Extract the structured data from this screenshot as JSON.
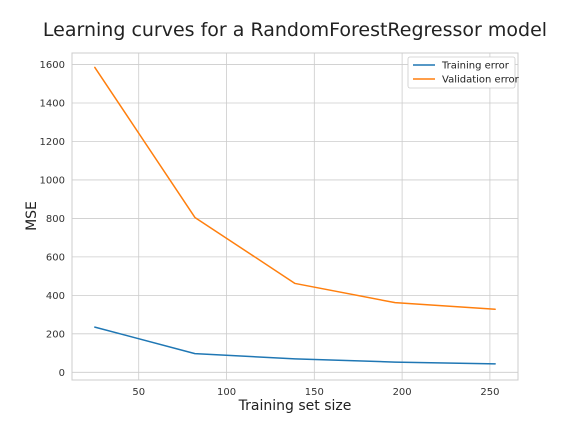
{
  "chart_data": {
    "type": "line",
    "title": "Learning curves for a RandomForestRegressor model",
    "xlabel": "Training set size",
    "ylabel": "MSE",
    "xlim": [
      12,
      266
    ],
    "ylim": [
      -40,
      1660
    ],
    "xticks": [
      50,
      100,
      150,
      200,
      250
    ],
    "yticks": [
      0,
      200,
      400,
      600,
      800,
      1000,
      1200,
      1400,
      1600
    ],
    "grid": true,
    "legend_position": "top-right",
    "series": [
      {
        "name": "Training error",
        "color": "#1f77b4",
        "x": [
          25,
          82,
          139,
          196,
          253
        ],
        "y": [
          235,
          97,
          70,
          53,
          44
        ]
      },
      {
        "name": "Validation error",
        "color": "#ff7f0e",
        "x": [
          25,
          82,
          139,
          196,
          253
        ],
        "y": [
          1585,
          805,
          462,
          362,
          328
        ]
      }
    ]
  }
}
